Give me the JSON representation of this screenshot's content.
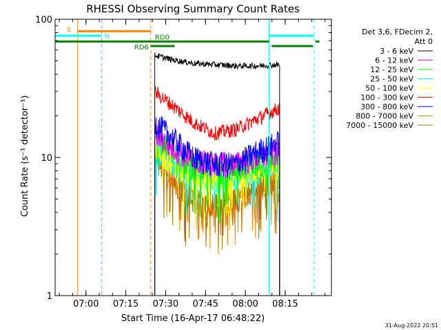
{
  "chart_data": {
    "type": "line",
    "title": "RHESSI Observing Summary Count Rates",
    "xlabel": "Start Time (16-Apr-17 06:48:22)",
    "ylabel": "Count Rate (s⁻¹ detector⁻¹)",
    "y_scale": "log",
    "ylim": [
      1,
      100
    ],
    "x_unit": "minutes after 06:48:22",
    "xlim": [
      0,
      104
    ],
    "x_ticks": [
      {
        "t": 11.6,
        "label": "07:00"
      },
      {
        "t": 26.6,
        "label": "07:15"
      },
      {
        "t": 41.6,
        "label": "07:30"
      },
      {
        "t": 56.6,
        "label": "07:45"
      },
      {
        "t": 71.6,
        "label": "08:00"
      },
      {
        "t": 86.6,
        "label": "08:15"
      }
    ],
    "y_ticks": [
      {
        "v": 1,
        "label": "1"
      },
      {
        "v": 10,
        "label": "10"
      },
      {
        "v": 100,
        "label": "100"
      }
    ],
    "legend": {
      "header": [
        "Det 3,6, FDecim 2,",
        "Att 0"
      ],
      "placement": "outside-right"
    },
    "data_window": [
      37.5,
      84.5
    ],
    "series": [
      {
        "name": "3 - 6 keV",
        "color": "#000000",
        "t": [
          37.5,
          44,
          52,
          60,
          68,
          76,
          84.5
        ],
        "y": [
          55,
          51,
          48,
          47,
          46,
          46,
          47
        ]
      },
      {
        "name": "6 - 12 keV",
        "color": "#ff00ff",
        "t": [
          37.5,
          44,
          52,
          60,
          68,
          76,
          84.5
        ],
        "y": [
          15,
          12,
          9.5,
          9,
          9,
          10,
          11
        ]
      },
      {
        "name": "12 - 25 keV",
        "color": "#00ff00",
        "t": [
          37.5,
          44,
          52,
          60,
          68,
          76,
          84.5
        ],
        "y": [
          14,
          11,
          8.5,
          8,
          8.5,
          9,
          10
        ]
      },
      {
        "name": "25 - 50 keV",
        "color": "#00ffff",
        "t": [
          37.5,
          44,
          52,
          60,
          68,
          76,
          84.5
        ],
        "y": [
          12,
          9,
          7.5,
          7,
          7.5,
          8,
          8.5
        ]
      },
      {
        "name": "50 - 100 keV",
        "color": "#ffff00",
        "t": [
          37.5,
          44,
          52,
          60,
          68,
          76,
          84.5
        ],
        "y": [
          12,
          9,
          7.5,
          7,
          7.5,
          8,
          8.5
        ]
      },
      {
        "name": "100 - 300 keV",
        "color": "#ff0000",
        "t": [
          37.5,
          44,
          52,
          60,
          68,
          76,
          84.5
        ],
        "y": [
          30,
          24,
          18,
          15,
          16,
          19,
          23
        ]
      },
      {
        "name": "300 - 800 keV",
        "color": "#0000ff",
        "t": [
          37.5,
          44,
          52,
          60,
          68,
          76,
          84.5
        ],
        "y": [
          18,
          14,
          10,
          9,
          9,
          11,
          13
        ]
      },
      {
        "name": "800 - 7000 keV",
        "color": "#ff8800",
        "t": [
          37.5,
          44,
          52,
          60,
          68,
          76,
          84.5
        ],
        "y": [
          10,
          7,
          5,
          4.5,
          5,
          6,
          7
        ]
      },
      {
        "name": "7000 - 15000 keV",
        "color": "#b07000",
        "t": [
          37.5,
          44,
          52,
          60,
          68,
          76,
          84.5
        ],
        "y": [
          10,
          7,
          5,
          4.5,
          5,
          6,
          7
        ]
      }
    ],
    "annotations": {
      "vlines": [
        {
          "t": 8.5,
          "color": "#ff8800",
          "style": "solid"
        },
        {
          "t": 17.5,
          "color": "#00ffff",
          "style": "dashed"
        },
        {
          "t": 36.0,
          "color": "#ff8800",
          "style": "dashed"
        },
        {
          "t": 80.5,
          "color": "#00ffff",
          "style": "solid"
        },
        {
          "t": 97.5,
          "color": "#00ffff",
          "style": "dashed"
        }
      ],
      "bars": [
        {
          "label": "S",
          "color": "#ff8800",
          "t0": 8.5,
          "t1": 36.0,
          "y": 82
        },
        {
          "label": "N",
          "color": "#00ffff",
          "t0": 0,
          "t1": 17.5,
          "y": 76
        },
        {
          "label": "",
          "color": "#00ffff",
          "t0": 80.5,
          "t1": 97.5,
          "y": 76
        },
        {
          "label": "RD0",
          "color": "#008000",
          "t0": 0,
          "t1": 80.5,
          "y": 69
        },
        {
          "label": "",
          "color": "#008000",
          "t0": 81.5,
          "t1": 97.0,
          "y": 64
        },
        {
          "label": "RD6",
          "color": "#008000",
          "t0": 36.0,
          "t1": 45.0,
          "y": 64
        },
        {
          "label": "",
          "color": "#008000",
          "t0": 98.0,
          "t1": 99.5,
          "y": 69
        }
      ]
    }
  },
  "footer": {
    "timestamp": "31-Aug-2022 20:51"
  }
}
